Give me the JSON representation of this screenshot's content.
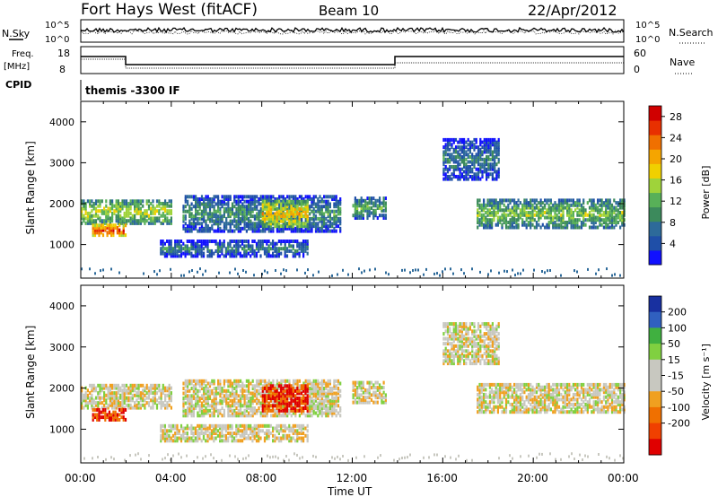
{
  "header": {
    "title": "Fort Hays West (fitACF)",
    "beam": "Beam 10",
    "date": "22/Apr/2012"
  },
  "strip_panels": {
    "nsky": {
      "label": "N.Sky",
      "left_ticks": [
        "10^5",
        "10^0"
      ],
      "right_ticks": [
        "10^5",
        "10^0"
      ],
      "right_label": "N.Search"
    },
    "freq": {
      "label_line1": "Freq.",
      "label_line2": "[MHz]",
      "left_ticks": [
        "18",
        "8"
      ],
      "right_ticks": [
        "60",
        "0"
      ],
      "right_label": "Nave"
    },
    "cpid": {
      "label": "CPID",
      "value": "themis -3300 IF"
    }
  },
  "colors": {
    "power_scale": [
      "#1010ff",
      "#1f4fa8",
      "#2d6a9a",
      "#3c8a5c",
      "#58b058",
      "#9fd33a",
      "#f0d000",
      "#f5a500",
      "#f07000",
      "#e83000",
      "#d00000"
    ],
    "velocity_scale": [
      "#e00000",
      "#f04000",
      "#f07000",
      "#f0a020",
      "#c8c8c0",
      "#c8c8c0",
      "#80d040",
      "#40b040",
      "#3060c0",
      "#1830a0"
    ]
  },
  "chart_data": [
    {
      "type": "heatmap",
      "title": "Power",
      "xlabel": "Time UT",
      "ylabel": "Slant Range [km]",
      "x_ticks": [
        "00:00",
        "04:00",
        "08:00",
        "12:00",
        "16:00",
        "20:00",
        "00:00"
      ],
      "xlim_hours": [
        0,
        24
      ],
      "y_ticks": [
        1000,
        2000,
        3000,
        4000
      ],
      "ylim": [
        180,
        4500
      ],
      "colorbar": {
        "label": "Power [dB]",
        "ticks": [
          4,
          8,
          12,
          16,
          20,
          24,
          28
        ],
        "range": [
          0,
          30
        ]
      },
      "features": [
        {
          "name": "main_band_morning",
          "t_start": 0.0,
          "t_end": 4.0,
          "range_center_km": 1800,
          "power_db": 16
        },
        {
          "name": "strong_echo",
          "t_start": 1.0,
          "t_end": 2.0,
          "range_center_km": 1350,
          "power_db": 28
        },
        {
          "name": "mid_band",
          "t_start": 4.5,
          "t_end": 11.5,
          "range_center_km": 1700,
          "power_db": 10
        },
        {
          "name": "lower_band",
          "t_start": 3.5,
          "t_end": 10.0,
          "range_center_km": 900,
          "power_db": 8
        },
        {
          "name": "evening_band",
          "t_start": 17.5,
          "t_end": 24.0,
          "range_center_km": 1700,
          "power_db": 14
        }
      ]
    },
    {
      "type": "heatmap",
      "title": "Velocity",
      "xlabel": "Time UT",
      "ylabel": "Slant Range [km]",
      "x_ticks": [
        "00:00",
        "04:00",
        "08:00",
        "12:00",
        "16:00",
        "20:00",
        "00:00"
      ],
      "xlim_hours": [
        0,
        24
      ],
      "y_ticks": [
        1000,
        2000,
        3000,
        4000
      ],
      "ylim": [
        180,
        4500
      ],
      "colorbar": {
        "label": "Velocity [m s^-1]",
        "ticks": [
          "200",
          "100",
          "50",
          "15",
          "-15",
          "-50",
          "-100",
          "-200"
        ],
        "range": [
          -250,
          250
        ]
      }
    }
  ]
}
